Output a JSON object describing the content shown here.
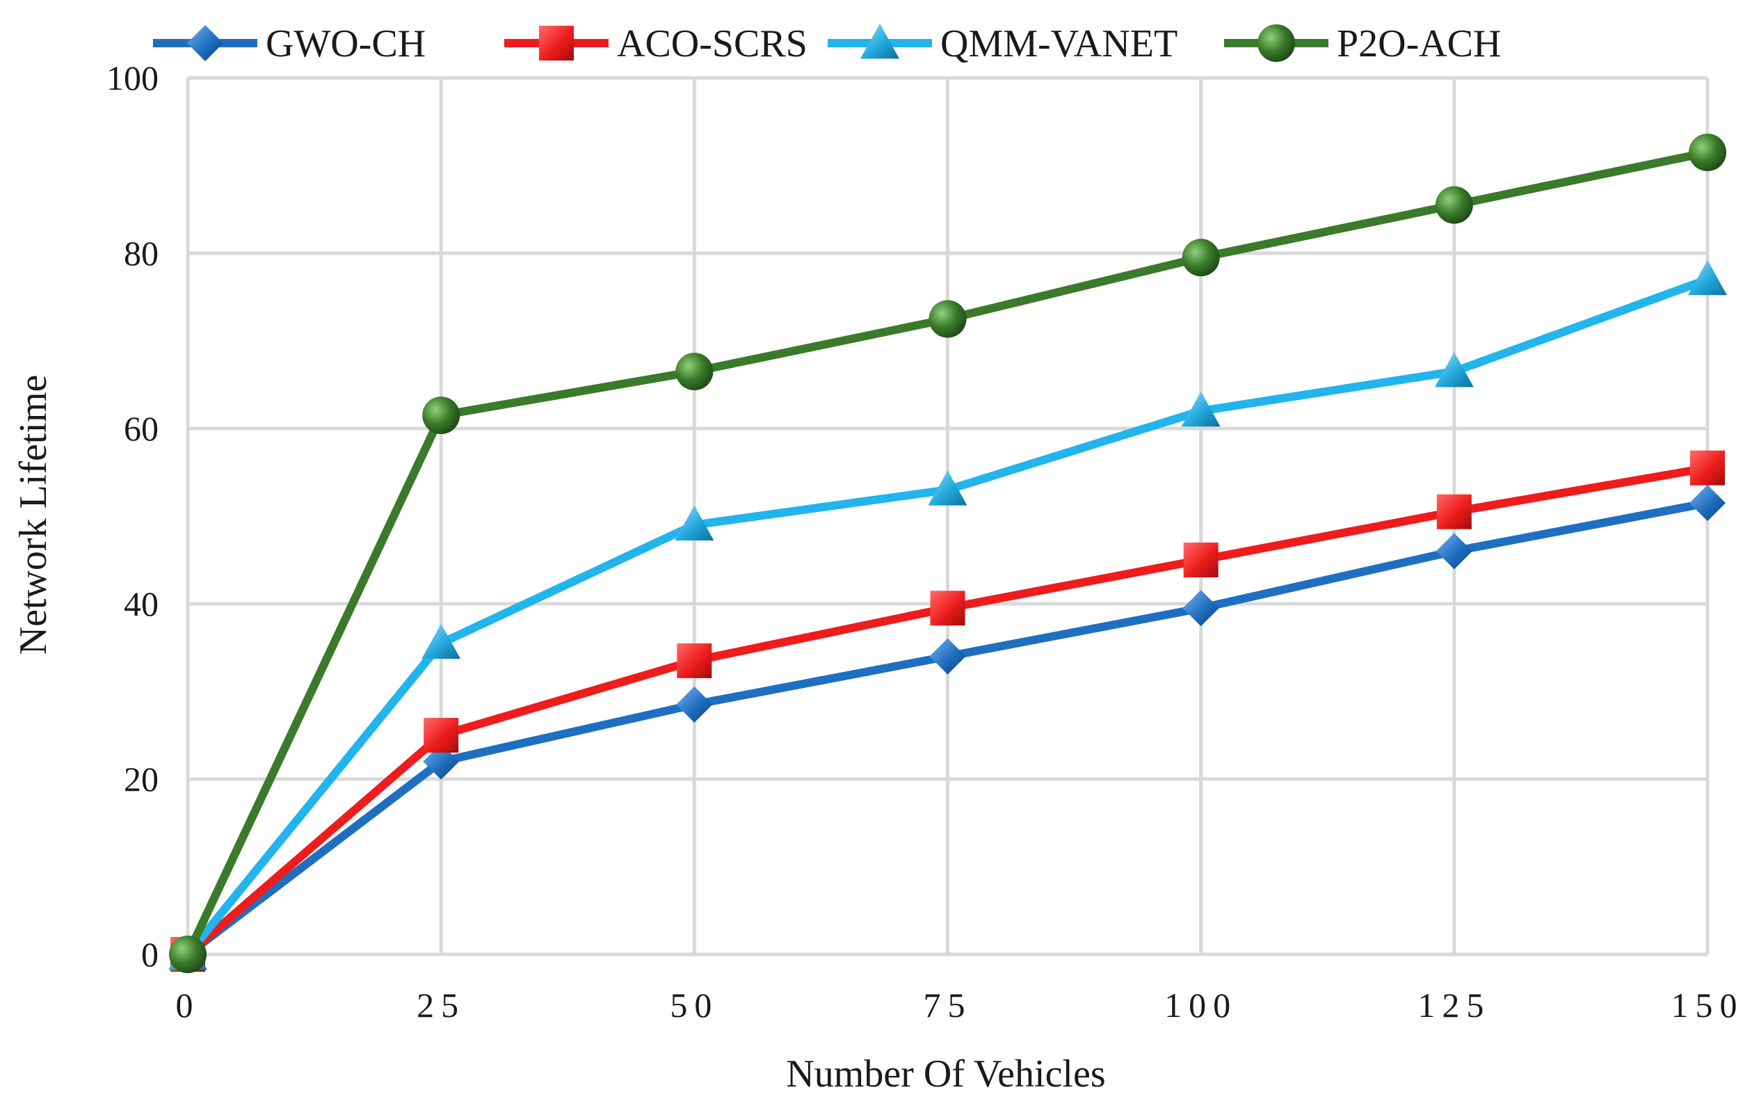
{
  "chart_data": {
    "type": "line",
    "title": "",
    "xlabel": "Number Of Vehicles",
    "ylabel": "Network Lifetime",
    "x": [
      0,
      25,
      50,
      75,
      100,
      125,
      150
    ],
    "x_tick_labels": [
      "0",
      "25",
      "50",
      "75",
      "100",
      "125",
      "150"
    ],
    "y_ticks": [
      0,
      20,
      40,
      60,
      80,
      100
    ],
    "y_tick_labels": [
      "0",
      "20",
      "40",
      "60",
      "80",
      "100"
    ],
    "xlim": [
      0,
      150
    ],
    "ylim": [
      0,
      100
    ],
    "grid": true,
    "legend_position": "top",
    "series": [
      {
        "name": "GWO-CH",
        "color": "#1f6fc1",
        "marker": "diamond",
        "values": [
          0,
          22,
          28.5,
          34,
          39.5,
          46,
          51.5
        ]
      },
      {
        "name": "ACO-SCRS",
        "color": "#ee1c1c",
        "marker": "square",
        "values": [
          0,
          25,
          33.5,
          39.5,
          45,
          50.5,
          55.5
        ]
      },
      {
        "name": "QMM-VANET",
        "color": "#22b4ec",
        "marker": "triangle",
        "values": [
          0,
          35.5,
          49,
          53,
          62,
          66.5,
          77
        ]
      },
      {
        "name": "P2O-ACH",
        "color": "#3a7a2a",
        "marker": "circle",
        "values": [
          0,
          61.5,
          66.5,
          72.5,
          79.5,
          85.5,
          91.5
        ]
      }
    ]
  }
}
